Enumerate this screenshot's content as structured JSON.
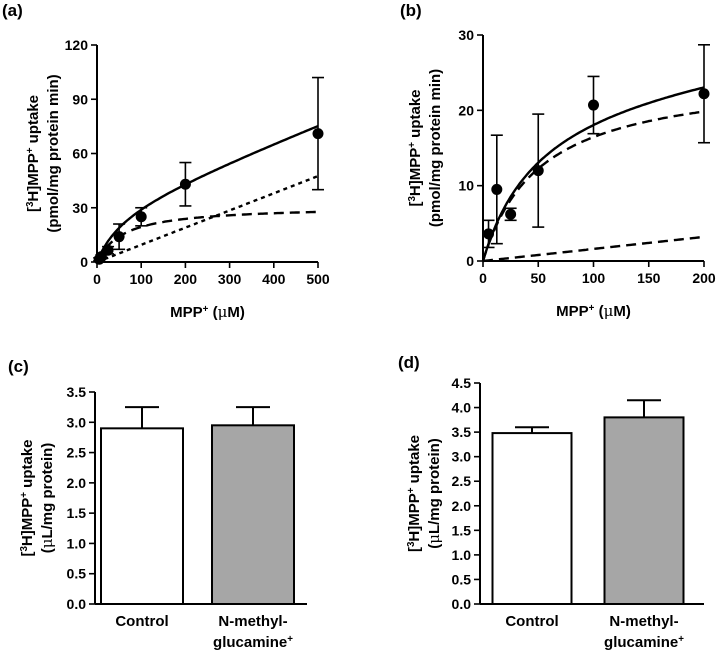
{
  "panels": [
    {
      "letter": "(a)",
      "ylabel_line1": "[3H]MPP+ uptake",
      "ylabel_line2": "(pmol/mg protein min)",
      "xlabel": "MPP+ (μM)",
      "chart_data": {
        "type": "scatter",
        "xlim": [
          0,
          500
        ],
        "ylim": [
          0,
          120
        ],
        "xticks": [
          0,
          100,
          200,
          300,
          400,
          500
        ],
        "yticks": [
          0,
          30,
          60,
          90,
          120
        ],
        "points": [
          {
            "x": 5,
            "y": 1.5,
            "err": 0.8
          },
          {
            "x": 10,
            "y": 3,
            "err": 1
          },
          {
            "x": 25,
            "y": 6.5,
            "err": 2
          },
          {
            "x": 50,
            "y": 14,
            "err": 7
          },
          {
            "x": 100,
            "y": 25,
            "err": 5
          },
          {
            "x": 200,
            "y": 43,
            "err": 12
          },
          {
            "x": 500,
            "y": 71,
            "err": 31
          }
        ],
        "lines": [
          {
            "style": "solid",
            "kind": "mm_linear",
            "vmax": 31,
            "km": 60,
            "kd": 0.095
          },
          {
            "style": "dashed",
            "kind": "mm",
            "vmax": 31,
            "km": 60
          },
          {
            "style": "dotted",
            "kind": "linear",
            "kd": 0.095
          }
        ]
      }
    },
    {
      "letter": "(b)",
      "ylabel_line1": "[3H]MPP+ uptake",
      "ylabel_line2": "(pmol/mg protein min)",
      "xlabel": "MPP+ (μM)",
      "chart_data": {
        "type": "scatter",
        "xlim": [
          0,
          200
        ],
        "ylim": [
          0,
          30
        ],
        "xticks": [
          0,
          50,
          100,
          150,
          200
        ],
        "yticks": [
          0,
          10,
          20,
          30
        ],
        "points": [
          {
            "x": 5,
            "y": 3.6,
            "err": 1.8
          },
          {
            "x": 12.5,
            "y": 9.5,
            "err": 7.2
          },
          {
            "x": 25,
            "y": 6.2,
            "err": 0.8
          },
          {
            "x": 50,
            "y": 12,
            "err": 7.5
          },
          {
            "x": 100,
            "y": 20.7,
            "err": 3.8
          },
          {
            "x": 200,
            "y": 22.2,
            "err": 6.5
          }
        ],
        "lines": [
          {
            "style": "solid",
            "kind": "mm_linear",
            "vmax": 25,
            "km": 52,
            "kd": 0.016
          },
          {
            "style": "dashed",
            "kind": "mm",
            "vmax": 25,
            "km": 52
          },
          {
            "style": "dashed",
            "kind": "linear",
            "kd": 0.016
          }
        ]
      }
    }
  ],
  "bar_panels": [
    {
      "letter": "(c)",
      "ylabel_line1": "[3H]MPP+ uptake",
      "ylabel_line2": "(μL/mg protein)",
      "chart_data": {
        "type": "bar",
        "categories": [
          "Control",
          "N-methyl-glucamine+"
        ],
        "category_line1": [
          "Control",
          "N-methyl-"
        ],
        "category_line2": [
          "",
          "glucamine+"
        ],
        "values": [
          2.9,
          2.95
        ],
        "errors": [
          0.35,
          0.3
        ],
        "colors": [
          "#ffffff",
          "#a6a6a6"
        ],
        "ylim": [
          0,
          3.5
        ],
        "yticks": [
          "0.0",
          "0.5",
          "1.0",
          "1.5",
          "2.0",
          "2.5",
          "3.0",
          "3.5"
        ]
      }
    },
    {
      "letter": "(d)",
      "ylabel_line1": "[3H]MPP+ uptake",
      "ylabel_line2": "(μL/mg protein)",
      "chart_data": {
        "type": "bar",
        "categories": [
          "Control",
          "N-methyl-glucamine+"
        ],
        "category_line1": [
          "Control",
          "N-methyl-"
        ],
        "category_line2": [
          "",
          "glucamine+"
        ],
        "values": [
          3.48,
          3.8
        ],
        "errors": [
          0.12,
          0.35
        ],
        "colors": [
          "#ffffff",
          "#a6a6a6"
        ],
        "ylim": [
          0,
          4.5
        ],
        "yticks": [
          "0.0",
          "0.5",
          "1.0",
          "1.5",
          "2.0",
          "2.5",
          "3.0",
          "3.5",
          "4.0",
          "4.5"
        ]
      }
    }
  ]
}
